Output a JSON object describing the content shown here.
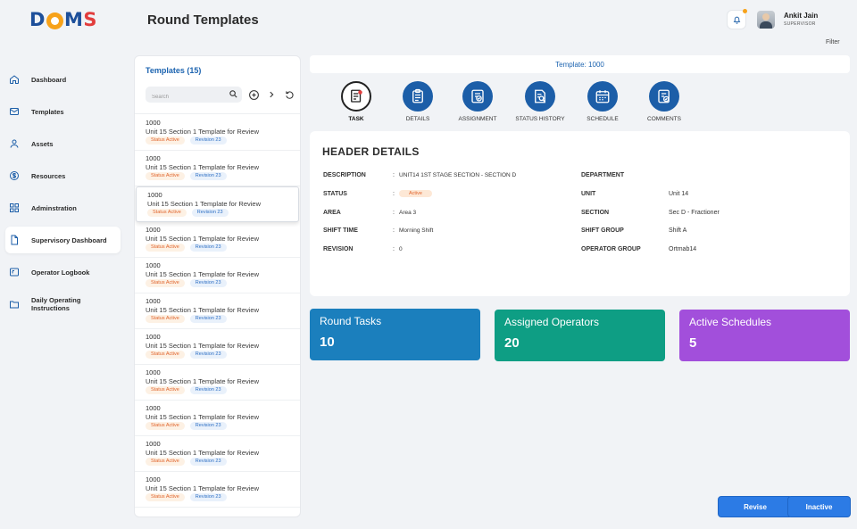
{
  "logo": {
    "text": "DOMS"
  },
  "header": {
    "title": "Round Templates",
    "user_name": "Ankit Jain",
    "user_role": "SUPERVISOR",
    "filter_label": "Filter"
  },
  "sidebar": {
    "items": [
      {
        "label": "Dashboard",
        "icon": "home-icon"
      },
      {
        "label": "Templates",
        "icon": "mail-icon"
      },
      {
        "label": "Assets",
        "icon": "user-icon"
      },
      {
        "label": "Resources",
        "icon": "dollar-icon"
      },
      {
        "label": "Adminstration",
        "icon": "grid-icon"
      },
      {
        "label": "Supervisory Dashboard",
        "icon": "document-icon"
      },
      {
        "label": "Operator Logbook",
        "icon": "logbook-icon"
      },
      {
        "label": "Daily Operating Instructions",
        "icon": "folder-icon"
      }
    ]
  },
  "templates_list": {
    "title": "Templates (15)",
    "search_placeholder": "Search",
    "items": [
      {
        "id": "1000",
        "name": "Unit 15 Section 1 Template for Review",
        "status": "Status Active",
        "revision": "Revision 23"
      },
      {
        "id": "1000",
        "name": "Unit 15 Section 1 Template for Review",
        "status": "Status Active",
        "revision": "Revision 23"
      },
      {
        "id": "1000",
        "name": "Unit 15 Section 1 Template for Review",
        "status": "Status Active",
        "revision": "Revision 23"
      },
      {
        "id": "1000",
        "name": "Unit 15 Section 1 Template for Review",
        "status": "Status Active",
        "revision": "Revision 23"
      },
      {
        "id": "1000",
        "name": "Unit 15 Section 1 Template for Review",
        "status": "Status Active",
        "revision": "Revision 23"
      },
      {
        "id": "1000",
        "name": "Unit 15 Section 1 Template for Review",
        "status": "Status Active",
        "revision": "Revision 23"
      },
      {
        "id": "1000",
        "name": "Unit 15 Section 1 Template for Review",
        "status": "Status Active",
        "revision": "Revision 23"
      },
      {
        "id": "1000",
        "name": "Unit 15 Section 1 Template for Review",
        "status": "Status Active",
        "revision": "Revision 23"
      },
      {
        "id": "1000",
        "name": "Unit 15 Section 1 Template for Review",
        "status": "Status Active",
        "revision": "Revision 23"
      },
      {
        "id": "1000",
        "name": "Unit 15 Section 1 Template for Review",
        "status": "Status Active",
        "revision": "Revision 23"
      },
      {
        "id": "1000",
        "name": "Unit 15 Section 1 Template for Review",
        "status": "Status Active",
        "revision": "Revision 23"
      }
    ]
  },
  "template_bar": {
    "label": "Template: 1000"
  },
  "tabs": [
    {
      "label": "TASK"
    },
    {
      "label": "DETAILS"
    },
    {
      "label": "ASSIGNMENT"
    },
    {
      "label": "STATUS HISTORY"
    },
    {
      "label": "SCHEDULE"
    },
    {
      "label": "COMMENTS"
    }
  ],
  "header_details": {
    "title": "HEADER DETAILS",
    "left": [
      {
        "label": "DESCRIPTION",
        "value": "UNIT14 1ST STAGE SECTION - SECTION D"
      },
      {
        "label": "STATUS",
        "value": "Active"
      },
      {
        "label": "AREA",
        "value": "Area 3"
      },
      {
        "label": "SHIFT TIME",
        "value": "Morning Shift"
      },
      {
        "label": "REVISION",
        "value": "0"
      }
    ],
    "right": [
      {
        "label": "DEPARTMENT",
        "value": ""
      },
      {
        "label": "UNIT",
        "value": "Unit 14"
      },
      {
        "label": "SECTION",
        "value": "Sec D - Fractioner"
      },
      {
        "label": "SHIFT GROUP",
        "value": "Shift A"
      },
      {
        "label": "OPERATOR GROUP",
        "value": "Ortmab14"
      }
    ]
  },
  "stats": [
    {
      "label": "Round Tasks",
      "value": "10",
      "color": "#1b7fbd"
    },
    {
      "label": "Assigned Operators",
      "value": "20",
      "color": "#0e9e84"
    },
    {
      "label": "Active Schedules",
      "value": "5",
      "color": "#a24fdb"
    }
  ],
  "actions": {
    "revise": "Revise",
    "inactive": "Inactive"
  },
  "colors": {
    "primary": "#1c5ea8",
    "button": "#2c7be5",
    "status_orange": "#e0632b",
    "revision_blue": "#2d6fc4"
  }
}
